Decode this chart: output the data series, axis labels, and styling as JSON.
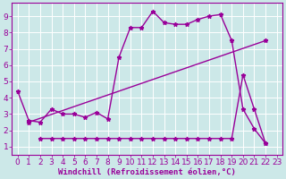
{
  "bg_color": "#cce8e8",
  "grid_color": "#ffffff",
  "line_color": "#990099",
  "xlabel": "Windchill (Refroidissement éolien,°C)",
  "xlim": [
    -0.5,
    23.5
  ],
  "ylim": [
    0.5,
    9.8
  ],
  "xticks": [
    0,
    1,
    2,
    3,
    4,
    5,
    6,
    7,
    8,
    9,
    10,
    11,
    12,
    13,
    14,
    15,
    16,
    17,
    18,
    19,
    20,
    21,
    22,
    23
  ],
  "yticks": [
    1,
    2,
    3,
    4,
    5,
    6,
    7,
    8,
    9
  ],
  "line1_x": [
    0,
    1,
    2,
    3,
    4,
    5,
    6,
    7,
    8,
    9,
    10,
    11,
    12,
    13,
    14,
    15,
    16,
    17,
    18,
    19,
    20,
    21,
    22
  ],
  "line1_y": [
    4.4,
    2.6,
    2.5,
    3.3,
    3.0,
    3.0,
    2.8,
    3.1,
    2.7,
    6.5,
    8.3,
    8.3,
    9.3,
    8.6,
    8.5,
    8.5,
    8.8,
    9.0,
    9.1,
    7.5,
    3.3,
    2.1,
    1.2
  ],
  "line2_x": [
    1,
    22
  ],
  "line2_y": [
    2.5,
    7.5
  ],
  "line3_x": [
    2,
    3,
    4,
    5,
    6,
    7,
    8,
    9,
    10,
    11,
    12,
    13,
    14,
    15,
    16,
    17,
    18,
    19,
    20,
    21,
    22
  ],
  "line3_y": [
    1.5,
    1.5,
    1.5,
    1.5,
    1.5,
    1.5,
    1.5,
    1.5,
    1.5,
    1.5,
    1.5,
    1.5,
    1.5,
    1.5,
    1.5,
    1.5,
    1.5,
    1.5,
    5.4,
    3.3,
    1.2
  ],
  "tick_fontsize": 6.5,
  "label_fontsize": 6.5
}
